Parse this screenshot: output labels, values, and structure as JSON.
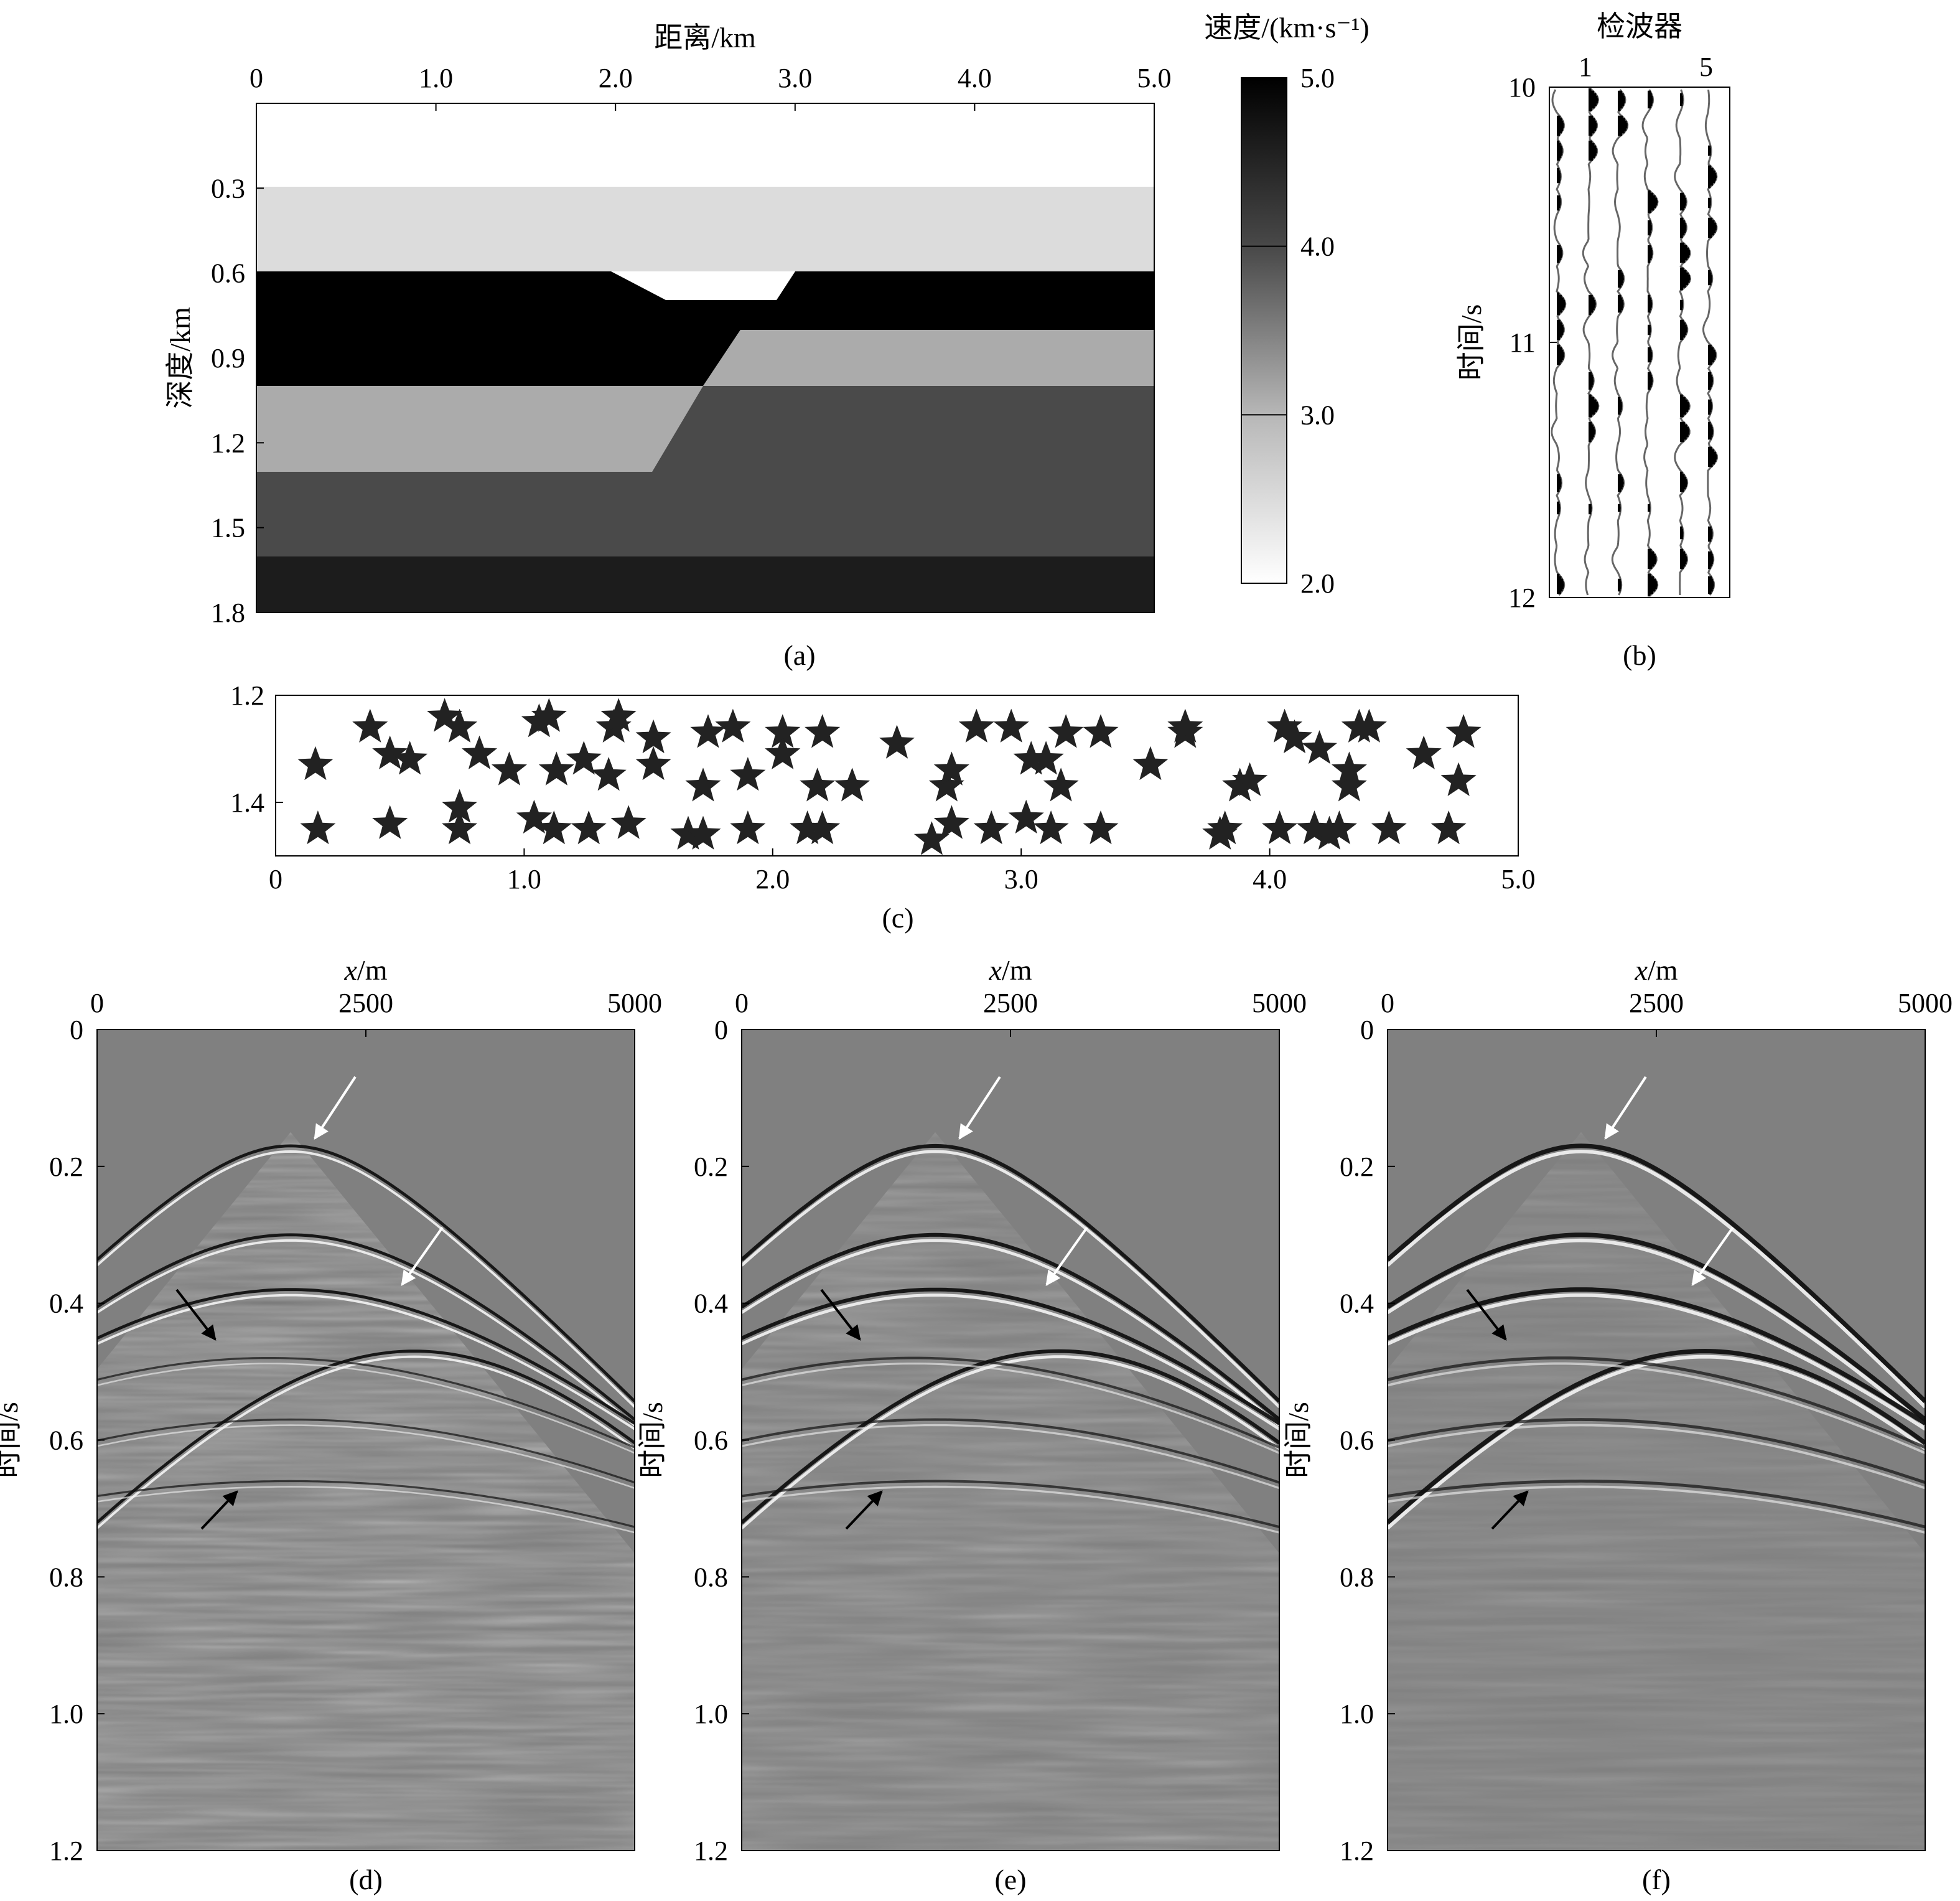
{
  "figure_captions": [
    "(a)",
    "(b)",
    "(c)",
    "(d)",
    "(e)",
    "(f)"
  ],
  "panel_a": {
    "xlabel": "距离/km",
    "ylabel": "深度/km",
    "xticks": [
      "0",
      "1.0",
      "2.0",
      "3.0",
      "4.0",
      "5.0"
    ],
    "yticks": [
      "0.3",
      "0.6",
      "0.9",
      "1.2",
      "1.5",
      "1.8"
    ],
    "colorbar_label": "速度/(km·s⁻¹)",
    "colorbar_ticks": [
      "5.0",
      "4.0",
      "3.0",
      "2.0"
    ],
    "colors": {
      "white": "#ffffff",
      "light": "#dcdcdc",
      "black": "#000000",
      "mid": "#ababab",
      "dark": "#4a4a4a",
      "deep": "#1c1c1c"
    }
  },
  "panel_b": {
    "title": "检波器",
    "ylabel": "时间/s",
    "xticks": [
      "1",
      "5"
    ],
    "yticks": [
      "10",
      "11",
      "12"
    ]
  },
  "panel_c": {
    "xticks": [
      "0",
      "1.0",
      "2.0",
      "3.0",
      "4.0",
      "5.0"
    ],
    "yticks": [
      "1.2",
      "1.4"
    ],
    "marker_icon": "star-icon"
  },
  "gathers": {
    "xlabel_var": "x",
    "xlabel_unit": "/m",
    "ylabel": "时间/s",
    "xticks": [
      "0",
      "2500",
      "5000"
    ],
    "yticks": [
      "0",
      "0.2",
      "0.4",
      "0.6",
      "0.8",
      "1.0",
      "1.2"
    ],
    "background": "#808080"
  },
  "chart_data": [
    {
      "type": "heatmap",
      "title": "(a)",
      "xlabel": "距离/km",
      "ylabel": "深度/km",
      "xlim": [
        0,
        5.0
      ],
      "ylim": [
        0,
        1.8
      ],
      "colorbar": {
        "label": "速度/(km·s⁻¹)",
        "range": [
          2.0,
          5.0
        ]
      },
      "layers": [
        {
          "depth_top": 0.0,
          "depth_bottom": 0.3,
          "velocity": 2.0
        },
        {
          "depth_top": 0.3,
          "depth_bottom": 0.6,
          "velocity": 2.5
        },
        {
          "depth_top": 0.6,
          "depth_bottom": 1.0,
          "velocity": 5.0
        },
        {
          "depth_top": 0.8,
          "depth_bottom": 1.0,
          "velocity": 3.2,
          "note": "fault block x>2.5"
        },
        {
          "depth_top": 1.0,
          "depth_bottom": 1.3,
          "velocity": 3.2
        },
        {
          "depth_top": 1.3,
          "depth_bottom": 1.6,
          "velocity": 3.8
        },
        {
          "depth_top": 1.6,
          "depth_bottom": 1.8,
          "velocity": 4.6
        }
      ]
    },
    {
      "type": "line",
      "title": "(b)",
      "xlabel": "检波器",
      "ylabel": "时间/s",
      "ylim": [
        10,
        12
      ],
      "traces": 6
    },
    {
      "type": "scatter",
      "title": "(c)",
      "xlim": [
        0,
        5.0
      ],
      "ylim": [
        1.2,
        1.5
      ],
      "points": [
        [
          0.16,
          1.33
        ],
        [
          0.17,
          1.45
        ],
        [
          0.38,
          1.26
        ],
        [
          0.46,
          1.31
        ],
        [
          0.46,
          1.44
        ],
        [
          0.54,
          1.32
        ],
        [
          0.68,
          1.24
        ],
        [
          0.74,
          1.26
        ],
        [
          0.74,
          1.41
        ],
        [
          0.74,
          1.45
        ],
        [
          0.82,
          1.31
        ],
        [
          0.94,
          1.34
        ],
        [
          1.04,
          1.43
        ],
        [
          1.06,
          1.25
        ],
        [
          1.1,
          1.24
        ],
        [
          1.12,
          1.45
        ],
        [
          1.13,
          1.34
        ],
        [
          1.24,
          1.32
        ],
        [
          1.26,
          1.45
        ],
        [
          1.34,
          1.35
        ],
        [
          1.36,
          1.26
        ],
        [
          1.38,
          1.24
        ],
        [
          1.42,
          1.44
        ],
        [
          1.52,
          1.33
        ],
        [
          1.52,
          1.28
        ],
        [
          1.66,
          1.46
        ],
        [
          1.72,
          1.46
        ],
        [
          1.72,
          1.37
        ],
        [
          1.74,
          1.27
        ],
        [
          1.84,
          1.26
        ],
        [
          1.9,
          1.35
        ],
        [
          1.9,
          1.45
        ],
        [
          2.04,
          1.27
        ],
        [
          2.04,
          1.31
        ],
        [
          2.14,
          1.45
        ],
        [
          2.18,
          1.37
        ],
        [
          2.2,
          1.45
        ],
        [
          2.2,
          1.27
        ],
        [
          2.32,
          1.37
        ],
        [
          2.5,
          1.29
        ],
        [
          2.64,
          1.47
        ],
        [
          2.7,
          1.37
        ],
        [
          2.72,
          1.34
        ],
        [
          2.72,
          1.44
        ],
        [
          2.82,
          1.26
        ],
        [
          2.88,
          1.45
        ],
        [
          2.96,
          1.26
        ],
        [
          3.02,
          1.43
        ],
        [
          3.04,
          1.32
        ],
        [
          3.1,
          1.32
        ],
        [
          3.12,
          1.45
        ],
        [
          3.16,
          1.37
        ],
        [
          3.18,
          1.27
        ],
        [
          3.32,
          1.45
        ],
        [
          3.32,
          1.27
        ],
        [
          3.52,
          1.33
        ],
        [
          3.66,
          1.27
        ],
        [
          3.66,
          1.26
        ],
        [
          3.8,
          1.46
        ],
        [
          3.82,
          1.45
        ],
        [
          3.88,
          1.37
        ],
        [
          3.92,
          1.36
        ],
        [
          4.04,
          1.45
        ],
        [
          4.06,
          1.26
        ],
        [
          4.1,
          1.28
        ],
        [
          4.18,
          1.45
        ],
        [
          4.2,
          1.3
        ],
        [
          4.24,
          1.46
        ],
        [
          4.28,
          1.45
        ],
        [
          4.32,
          1.37
        ],
        [
          4.32,
          1.34
        ],
        [
          4.36,
          1.26
        ],
        [
          4.4,
          1.26
        ],
        [
          4.48,
          1.45
        ],
        [
          4.62,
          1.31
        ],
        [
          4.72,
          1.45
        ],
        [
          4.76,
          1.36
        ],
        [
          4.78,
          1.27
        ]
      ]
    },
    {
      "type": "heatmap",
      "title": "(d)",
      "xlabel": "x/m",
      "ylabel": "时间/s",
      "xlim": [
        0,
        5000
      ],
      "ylim": [
        0,
        1.2
      ]
    },
    {
      "type": "heatmap",
      "title": "(e)",
      "xlabel": "x/m",
      "ylabel": "时间/s",
      "xlim": [
        0,
        5000
      ],
      "ylim": [
        0,
        1.2
      ]
    },
    {
      "type": "heatmap",
      "title": "(f)",
      "xlabel": "x/m",
      "ylabel": "时间/s",
      "xlim": [
        0,
        5000
      ],
      "ylim": [
        0,
        1.2
      ]
    }
  ]
}
